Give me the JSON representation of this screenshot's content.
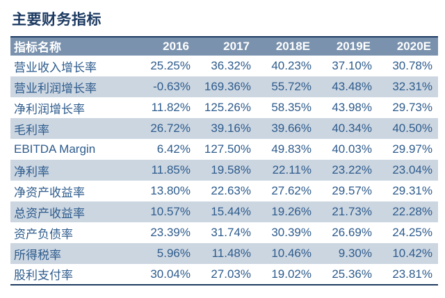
{
  "title": "主要财务指标",
  "colors": {
    "title_text": "#1c3a61",
    "header_bg": "#7a92ae",
    "header_text": "#ffffff",
    "stripe_bg": "#ccd6e1",
    "data_text": "#2d5b8c",
    "rule_border": "#1c3a61"
  },
  "chart_data": {
    "type": "table",
    "title": "主要财务指标",
    "columns": [
      "指标名称",
      "2016",
      "2017",
      "2018E",
      "2019E",
      "2020E"
    ],
    "rows": [
      {
        "label": "营业收入增长率",
        "values": [
          "25.25%",
          "36.32%",
          "40.23%",
          "37.10%",
          "30.78%"
        ]
      },
      {
        "label": "营业利润增长率",
        "values": [
          "-0.63%",
          "169.36%",
          "55.72%",
          "43.48%",
          "32.31%"
        ]
      },
      {
        "label": "净利润增长率",
        "values": [
          "11.82%",
          "125.26%",
          "58.35%",
          "43.98%",
          "29.73%"
        ]
      },
      {
        "label": "毛利率",
        "values": [
          "26.72%",
          "39.16%",
          "39.66%",
          "40.34%",
          "40.50%"
        ]
      },
      {
        "label": "EBITDA Margin",
        "values": [
          "6.42%",
          "127.50%",
          "49.83%",
          "40.03%",
          "29.97%"
        ]
      },
      {
        "label": "净利率",
        "values": [
          "11.85%",
          "19.58%",
          "22.11%",
          "23.22%",
          "23.04%"
        ]
      },
      {
        "label": "净资产收益率",
        "values": [
          "13.80%",
          "22.63%",
          "27.62%",
          "29.57%",
          "29.31%"
        ]
      },
      {
        "label": "总资产收益率",
        "values": [
          "10.57%",
          "15.44%",
          "19.26%",
          "21.73%",
          "22.28%"
        ]
      },
      {
        "label": "资产负债率",
        "values": [
          "23.39%",
          "31.74%",
          "30.39%",
          "26.69%",
          "24.25%"
        ]
      },
      {
        "label": "所得税率",
        "values": [
          "5.96%",
          "11.48%",
          "10.46%",
          "9.30%",
          "10.42%"
        ]
      },
      {
        "label": "股利支付率",
        "values": [
          "30.04%",
          "27.03%",
          "19.02%",
          "25.36%",
          "23.81%"
        ]
      }
    ],
    "layout": {
      "stripe_pattern": "alternating starting white on first data row",
      "grid": "none, horizontal top and bottom rules only",
      "value_alignment": "right",
      "label_alignment": "left"
    }
  }
}
